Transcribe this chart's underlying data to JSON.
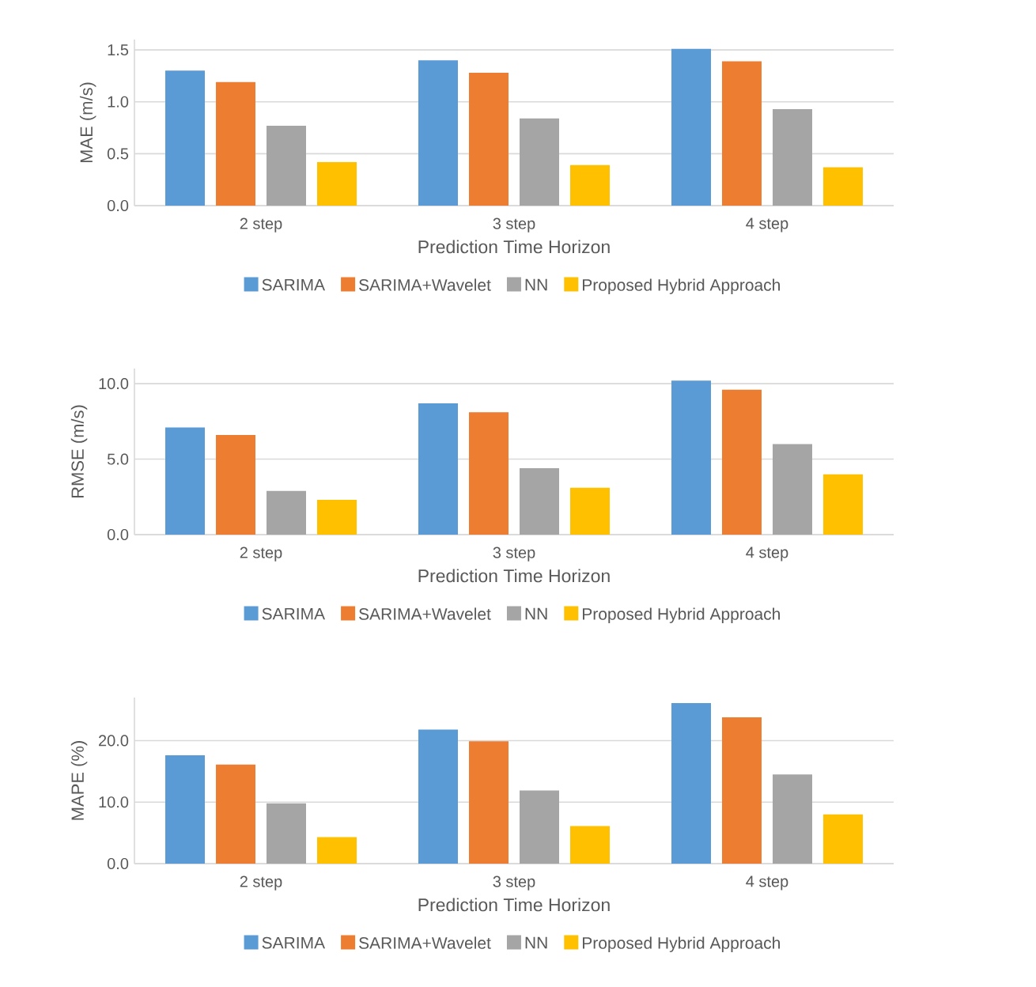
{
  "chart_data": [
    {
      "type": "bar",
      "categories": [
        "2 step",
        "3 step",
        "4 step"
      ],
      "xlabel": "Prediction Time Horizon",
      "ylabel": "MAE (m/s)",
      "ylim": [
        0,
        1.6
      ],
      "yticks": [
        {
          "value": 0,
          "label": "0.0"
        },
        {
          "value": 0.5,
          "label": "0.5"
        },
        {
          "value": 1,
          "label": "1.0"
        },
        {
          "value": 1.5,
          "label": "1.5"
        }
      ],
      "grid": "y",
      "legend": "bottom",
      "series": [
        {
          "name": "SARIMA",
          "color": "#5b9bd5",
          "values": [
            1.3,
            1.4,
            1.51
          ]
        },
        {
          "name": "SARIMA+Wavelet",
          "color": "#ed7d31",
          "values": [
            1.19,
            1.28,
            1.39
          ]
        },
        {
          "name": "NN",
          "color": "#a5a5a5",
          "values": [
            0.77,
            0.84,
            0.93
          ]
        },
        {
          "name": "Proposed Hybrid Approach",
          "color": "#ffc000",
          "values": [
            0.42,
            0.39,
            0.37
          ]
        }
      ]
    },
    {
      "type": "bar",
      "categories": [
        "2 step",
        "3 step",
        "4 step"
      ],
      "xlabel": "Prediction Time Horizon",
      "ylabel": "RMSE (m/s)",
      "ylim": [
        0,
        11
      ],
      "yticks": [
        {
          "value": 0,
          "label": "0.0"
        },
        {
          "value": 5,
          "label": "5.0"
        },
        {
          "value": 10,
          "label": "10.0"
        }
      ],
      "grid": "y",
      "legend": "bottom",
      "series": [
        {
          "name": "SARIMA",
          "color": "#5b9bd5",
          "values": [
            7.1,
            8.7,
            10.2
          ]
        },
        {
          "name": "SARIMA+Wavelet",
          "color": "#ed7d31",
          "values": [
            6.6,
            8.1,
            9.6
          ]
        },
        {
          "name": "NN",
          "color": "#a5a5a5",
          "values": [
            2.9,
            4.4,
            6.0
          ]
        },
        {
          "name": "Proposed Hybrid Approach",
          "color": "#ffc000",
          "values": [
            2.3,
            3.1,
            4.0
          ]
        }
      ]
    },
    {
      "type": "bar",
      "categories": [
        "2 step",
        "3 step",
        "4 step"
      ],
      "xlabel": "Prediction Time Horizon",
      "ylabel": "MAPE (%)",
      "ylim": [
        0,
        27
      ],
      "yticks": [
        {
          "value": 0,
          "label": "0.0"
        },
        {
          "value": 10,
          "label": "10.0"
        },
        {
          "value": 20,
          "label": "20.0"
        }
      ],
      "grid": "y",
      "legend": "bottom",
      "series": [
        {
          "name": "SARIMA",
          "color": "#5b9bd5",
          "values": [
            17.6,
            21.8,
            26.1
          ]
        },
        {
          "name": "SARIMA+Wavelet",
          "color": "#ed7d31",
          "values": [
            16.1,
            19.9,
            23.8
          ]
        },
        {
          "name": "NN",
          "color": "#a5a5a5",
          "values": [
            9.8,
            11.9,
            14.5
          ]
        },
        {
          "name": "Proposed Hybrid Approach",
          "color": "#ffc000",
          "values": [
            4.3,
            6.1,
            8.0
          ]
        }
      ]
    }
  ]
}
